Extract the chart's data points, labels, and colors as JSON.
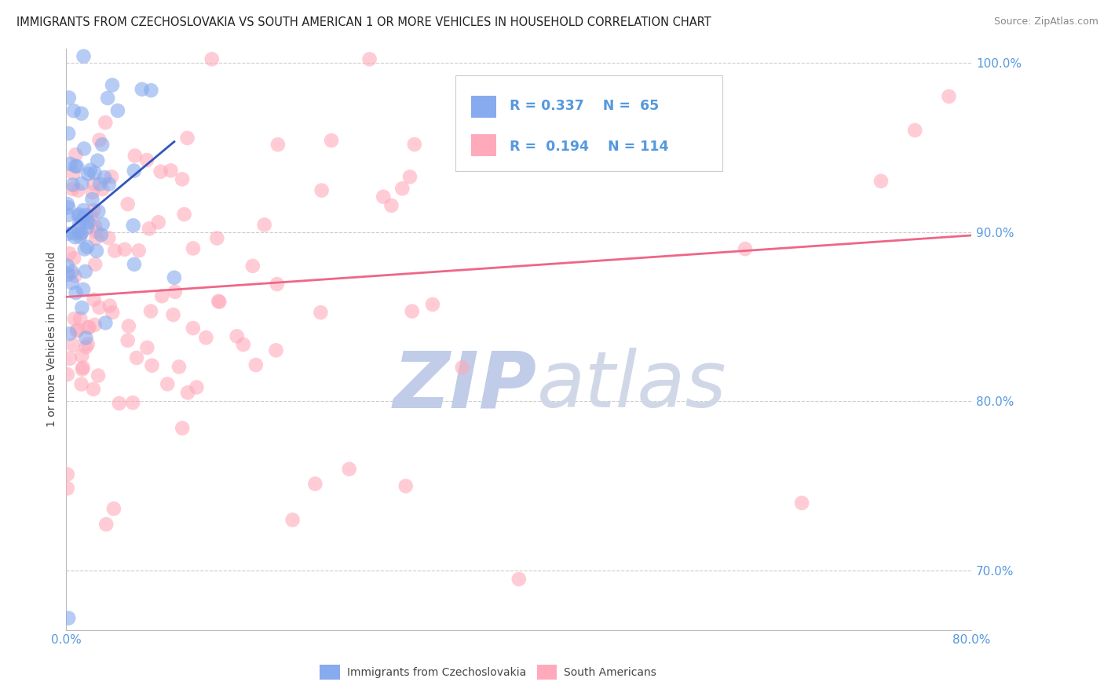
{
  "title": "IMMIGRANTS FROM CZECHOSLOVAKIA VS SOUTH AMERICAN 1 OR MORE VEHICLES IN HOUSEHOLD CORRELATION CHART",
  "source": "Source: ZipAtlas.com",
  "ylabel": "1 or more Vehicles in Household",
  "xlim": [
    0.0,
    0.8
  ],
  "ylim": [
    0.665,
    1.008
  ],
  "xtick_vals": [
    0.0,
    0.2,
    0.4,
    0.6,
    0.8
  ],
  "xtick_labels": [
    "0.0%",
    "",
    "",
    "",
    "80.0%"
  ],
  "ytick_vals": [
    0.7,
    0.8,
    0.9,
    1.0
  ],
  "ytick_labels": [
    "70.0%",
    "80.0%",
    "90.0%",
    "100.0%"
  ],
  "blue_color": "#88aaee",
  "pink_color": "#ffaabb",
  "blue_line_color": "#3355bb",
  "pink_line_color": "#ee6688",
  "tick_color": "#5599dd",
  "R_blue": 0.337,
  "N_blue": 65,
  "R_pink": 0.194,
  "N_pink": 114,
  "legend_label_blue": "Immigrants from Czechoslovakia",
  "legend_label_pink": "South Americans",
  "grid_color": "#cccccc",
  "background_color": "#ffffff",
  "title_fontsize": 10.5,
  "source_fontsize": 9,
  "tick_fontsize": 11,
  "ylabel_fontsize": 10,
  "watermark_zip": "ZIP",
  "watermark_atlas": "atlas",
  "watermark_color_zip": "#c0cce8",
  "watermark_color_atlas": "#d0d8e8",
  "watermark_fontsize": 72
}
